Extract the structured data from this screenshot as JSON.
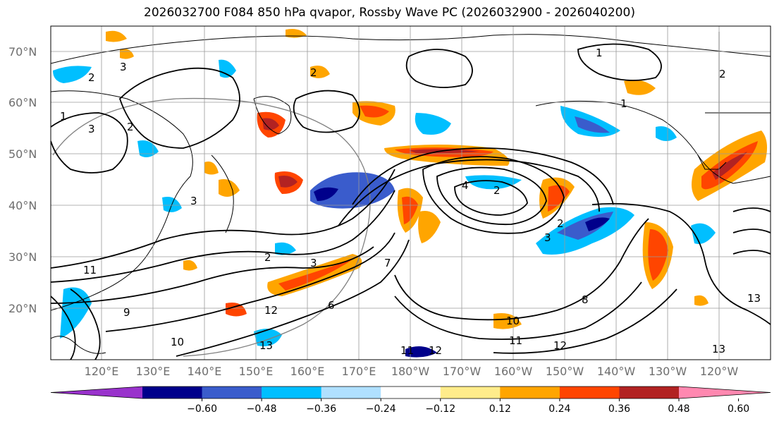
{
  "title": "2026032700 F084 850 hPa qvapor, Rossby Wave PC (2026032900 - 2026040200)",
  "map": {
    "lat_labels": [
      "70°N",
      "60°N",
      "50°N",
      "40°N",
      "30°N",
      "20°N"
    ],
    "lon_labels": [
      "120°E",
      "130°E",
      "140°E",
      "150°E",
      "160°E",
      "170°E",
      "180°W",
      "170°W",
      "160°W",
      "150°W",
      "140°W",
      "130°W",
      "120°W"
    ],
    "contour_labels": [
      "1",
      "2",
      "3",
      "2",
      "3",
      "3",
      "2",
      "4",
      "2",
      "2",
      "3",
      "2",
      "1",
      "1",
      "2",
      "3",
      "11",
      "12",
      "13",
      "10",
      "11",
      "12",
      "13",
      "8",
      "9",
      "10",
      "11",
      "12",
      "13",
      "6",
      "7"
    ],
    "colors": {
      "land_outline": "#000000",
      "grid": "#9a9a9a",
      "contour": "#000000"
    }
  },
  "colorbar": {
    "ticks": [
      "−0.60",
      "−0.48",
      "−0.36",
      "−0.24",
      "−0.12",
      "0.12",
      "0.24",
      "0.36",
      "0.48",
      "0.60"
    ],
    "colors": [
      "#9932cc",
      "#00008b",
      "#3a5ccc",
      "#00bfff",
      "#b0e0ff",
      "#ffffff",
      "#ffec8b",
      "#ffa500",
      "#ff4500",
      "#b22222",
      "#ff88b0"
    ]
  }
}
